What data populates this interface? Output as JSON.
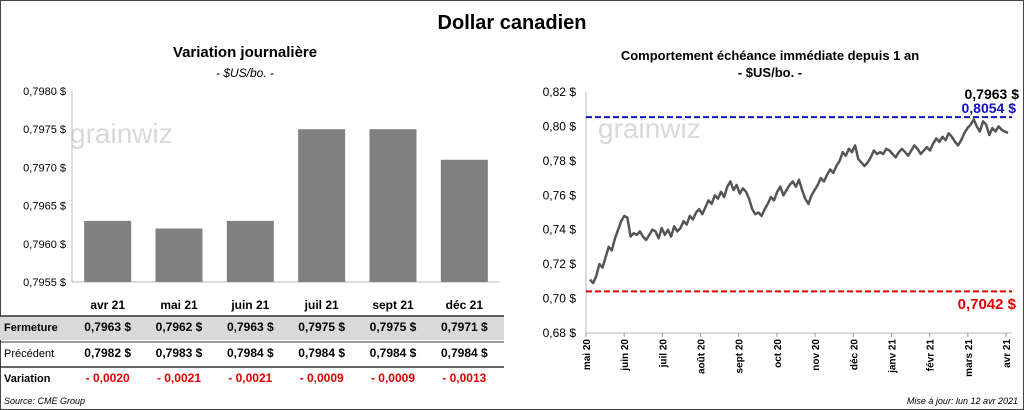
{
  "page": {
    "title": "Dollar canadien",
    "source": "Source: CME Group",
    "updated": "Mise à jour: lun 12 avr 2021",
    "watermark": "grainwiz"
  },
  "chart_data": [
    {
      "type": "bar",
      "title": "Variation  journalière",
      "subtitle": "- $US/bo. -",
      "categories": [
        "avr 21",
        "mai 21",
        "juin 21",
        "juil 21",
        "sept 21",
        "déc 21"
      ],
      "values": [
        0.7963,
        0.7962,
        0.7963,
        0.7975,
        0.7975,
        0.7971
      ],
      "ylim": [
        0.7955,
        0.798
      ],
      "yticks": [
        "0,7955 $",
        "0,7960 $",
        "0,7965 $",
        "0,7970 $",
        "0,7975 $",
        "0,7980 $"
      ],
      "bar_color": "#808080",
      "table": {
        "rows": [
          {
            "label": "Fermeture",
            "values": [
              "0,7963  $",
              "0,7962  $",
              "0,7963  $",
              "0,7975  $",
              "0,7975  $",
              "0,7971  $"
            ]
          },
          {
            "label": "Précédent",
            "values": [
              "0,7982  $",
              "0,7983  $",
              "0,7984  $",
              "0,7984  $",
              "0,7984  $",
              "0,7984  $"
            ]
          },
          {
            "label": "Variation",
            "values": [
              "- 0,0020",
              "- 0,0021",
              "- 0,0021",
              "- 0,0009",
              "- 0,0009",
              "- 0,0013"
            ]
          }
        ]
      }
    },
    {
      "type": "line",
      "title": "Comportement échéance immédiate depuis 1 an",
      "subtitle": "- $US/bo. -",
      "ylim": [
        0.68,
        0.82
      ],
      "yticks": [
        "0,68 $",
        "0,70 $",
        "0,72 $",
        "0,74 $",
        "0,76 $",
        "0,78 $",
        "0,80 $",
        "0,82 $"
      ],
      "xticks": [
        "mai 20",
        "juin 20",
        "juil 20",
        "août 20",
        "sept 20",
        "oct 20",
        "nov 20",
        "déc 20",
        "janv 21",
        "févr 21",
        "mars 21",
        "avr 21"
      ],
      "line_color": "#555555",
      "series_values": [
        0.711,
        0.709,
        0.713,
        0.72,
        0.718,
        0.724,
        0.73,
        0.728,
        0.735,
        0.74,
        0.745,
        0.748,
        0.747,
        0.736,
        0.738,
        0.737,
        0.739,
        0.736,
        0.734,
        0.737,
        0.74,
        0.739,
        0.735,
        0.741,
        0.737,
        0.74,
        0.736,
        0.742,
        0.739,
        0.741,
        0.745,
        0.743,
        0.748,
        0.746,
        0.75,
        0.752,
        0.749,
        0.753,
        0.757,
        0.755,
        0.76,
        0.758,
        0.762,
        0.759,
        0.765,
        0.768,
        0.763,
        0.766,
        0.761,
        0.764,
        0.762,
        0.758,
        0.752,
        0.749,
        0.75,
        0.748,
        0.752,
        0.755,
        0.759,
        0.757,
        0.762,
        0.765,
        0.76,
        0.763,
        0.766,
        0.768,
        0.765,
        0.769,
        0.763,
        0.758,
        0.755,
        0.76,
        0.763,
        0.766,
        0.77,
        0.768,
        0.772,
        0.775,
        0.773,
        0.777,
        0.78,
        0.785,
        0.783,
        0.787,
        0.785,
        0.789,
        0.781,
        0.779,
        0.777,
        0.779,
        0.782,
        0.786,
        0.784,
        0.785,
        0.784,
        0.787,
        0.786,
        0.784,
        0.782,
        0.785,
        0.787,
        0.785,
        0.783,
        0.786,
        0.789,
        0.787,
        0.784,
        0.786,
        0.788,
        0.786,
        0.79,
        0.793,
        0.791,
        0.794,
        0.792,
        0.796,
        0.794,
        0.791,
        0.789,
        0.792,
        0.796,
        0.799,
        0.801,
        0.804,
        0.8,
        0.797,
        0.803,
        0.801,
        0.795,
        0.799,
        0.797,
        0.8,
        0.798,
        0.797,
        0.7963
      ],
      "last_label": "0,7963 $",
      "max": {
        "value": 0.8054,
        "label": "0,8054  $",
        "color": "#1010c0"
      },
      "min": {
        "value": 0.7042,
        "label": "0,7042  $",
        "color": "#e00000"
      }
    }
  ]
}
